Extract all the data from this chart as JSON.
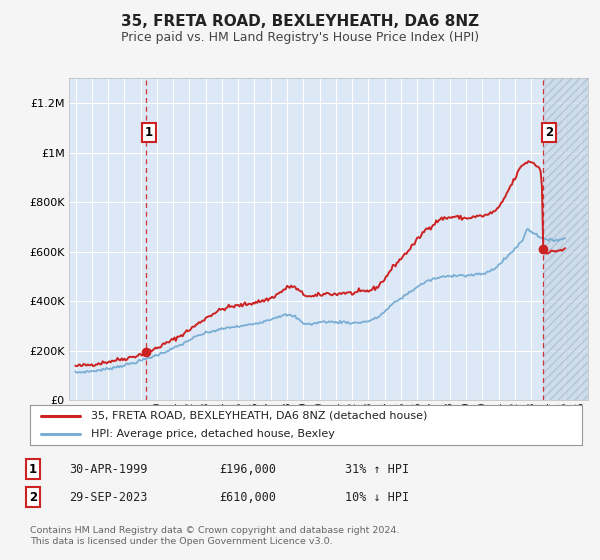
{
  "title": "35, FRETA ROAD, BEXLEYHEATH, DA6 8NZ",
  "subtitle": "Price paid vs. HM Land Registry's House Price Index (HPI)",
  "ylim": [
    0,
    1300000
  ],
  "xlim": [
    1994.6,
    2026.5
  ],
  "yticks": [
    0,
    200000,
    400000,
    600000,
    800000,
    1000000,
    1200000
  ],
  "ytick_labels": [
    "£0",
    "£200K",
    "£400K",
    "£600K",
    "£800K",
    "£1M",
    "£1.2M"
  ],
  "xticks": [
    1995,
    1996,
    1997,
    1998,
    1999,
    2000,
    2001,
    2002,
    2003,
    2004,
    2005,
    2006,
    2007,
    2008,
    2009,
    2010,
    2011,
    2012,
    2013,
    2014,
    2015,
    2016,
    2017,
    2018,
    2019,
    2020,
    2021,
    2022,
    2023,
    2024,
    2025,
    2026
  ],
  "red_line_color": "#cc2222",
  "blue_line_color": "#7aadd4",
  "marker1_x": 1999.33,
  "marker1_y": 196000,
  "marker2_x": 2023.75,
  "marker2_y": 610000,
  "vline1_x": 1999.33,
  "vline2_x": 2023.75,
  "legend_label_red": "35, FRETA ROAD, BEXLEYHEATH, DA6 8NZ (detached house)",
  "legend_label_blue": "HPI: Average price, detached house, Bexley",
  "table_row1": [
    "1",
    "30-APR-1999",
    "£196,000",
    "31% ↑ HPI"
  ],
  "table_row2": [
    "2",
    "29-SEP-2023",
    "£610,000",
    "10% ↓ HPI"
  ],
  "footer": "Contains HM Land Registry data © Crown copyright and database right 2024.\nThis data is licensed under the Open Government Licence v3.0.",
  "plot_bg_color": "#dce8f5",
  "grid_color": "#ffffff",
  "fig_bg_color": "#f5f5f5",
  "hatch_bg_color": "#c8d8e8",
  "box_edge_color": "#cc2222",
  "title_fontsize": 11,
  "subtitle_fontsize": 9
}
